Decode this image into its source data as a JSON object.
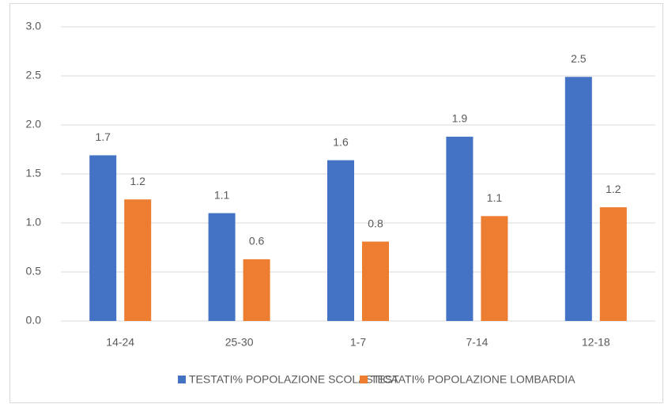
{
  "chart_data": {
    "type": "bar",
    "categories": [
      "14-24",
      "25-30",
      "1-7",
      "7-14",
      "12-18"
    ],
    "series": [
      {
        "name": "TESTATI% POPOLAZIONE SCOLASTICA",
        "color": "#4472c4",
        "values": [
          1.69,
          1.1,
          1.64,
          1.88,
          2.49
        ],
        "value_labels": [
          "1.7",
          "1.1",
          "1.6",
          "1.9",
          "2.5"
        ]
      },
      {
        "name": "TESTATI% POPOLAZIONE LOMBARDIA",
        "color": "#ed7d31",
        "values": [
          1.24,
          0.63,
          0.81,
          1.07,
          1.16
        ],
        "value_labels": [
          "1.2",
          "0.6",
          "0.8",
          "1.1",
          "1.2"
        ]
      }
    ],
    "ylim": [
      0,
      3
    ],
    "yticks": [
      {
        "value": 0,
        "label": "0.0"
      },
      0.5,
      {
        "value": 1,
        "label": "1.0"
      },
      1.5,
      {
        "value": 2,
        "label": "2.0"
      },
      2.5,
      {
        "value": 3,
        "label": "3.0"
      }
    ],
    "grid": true,
    "legend": "bottom"
  }
}
